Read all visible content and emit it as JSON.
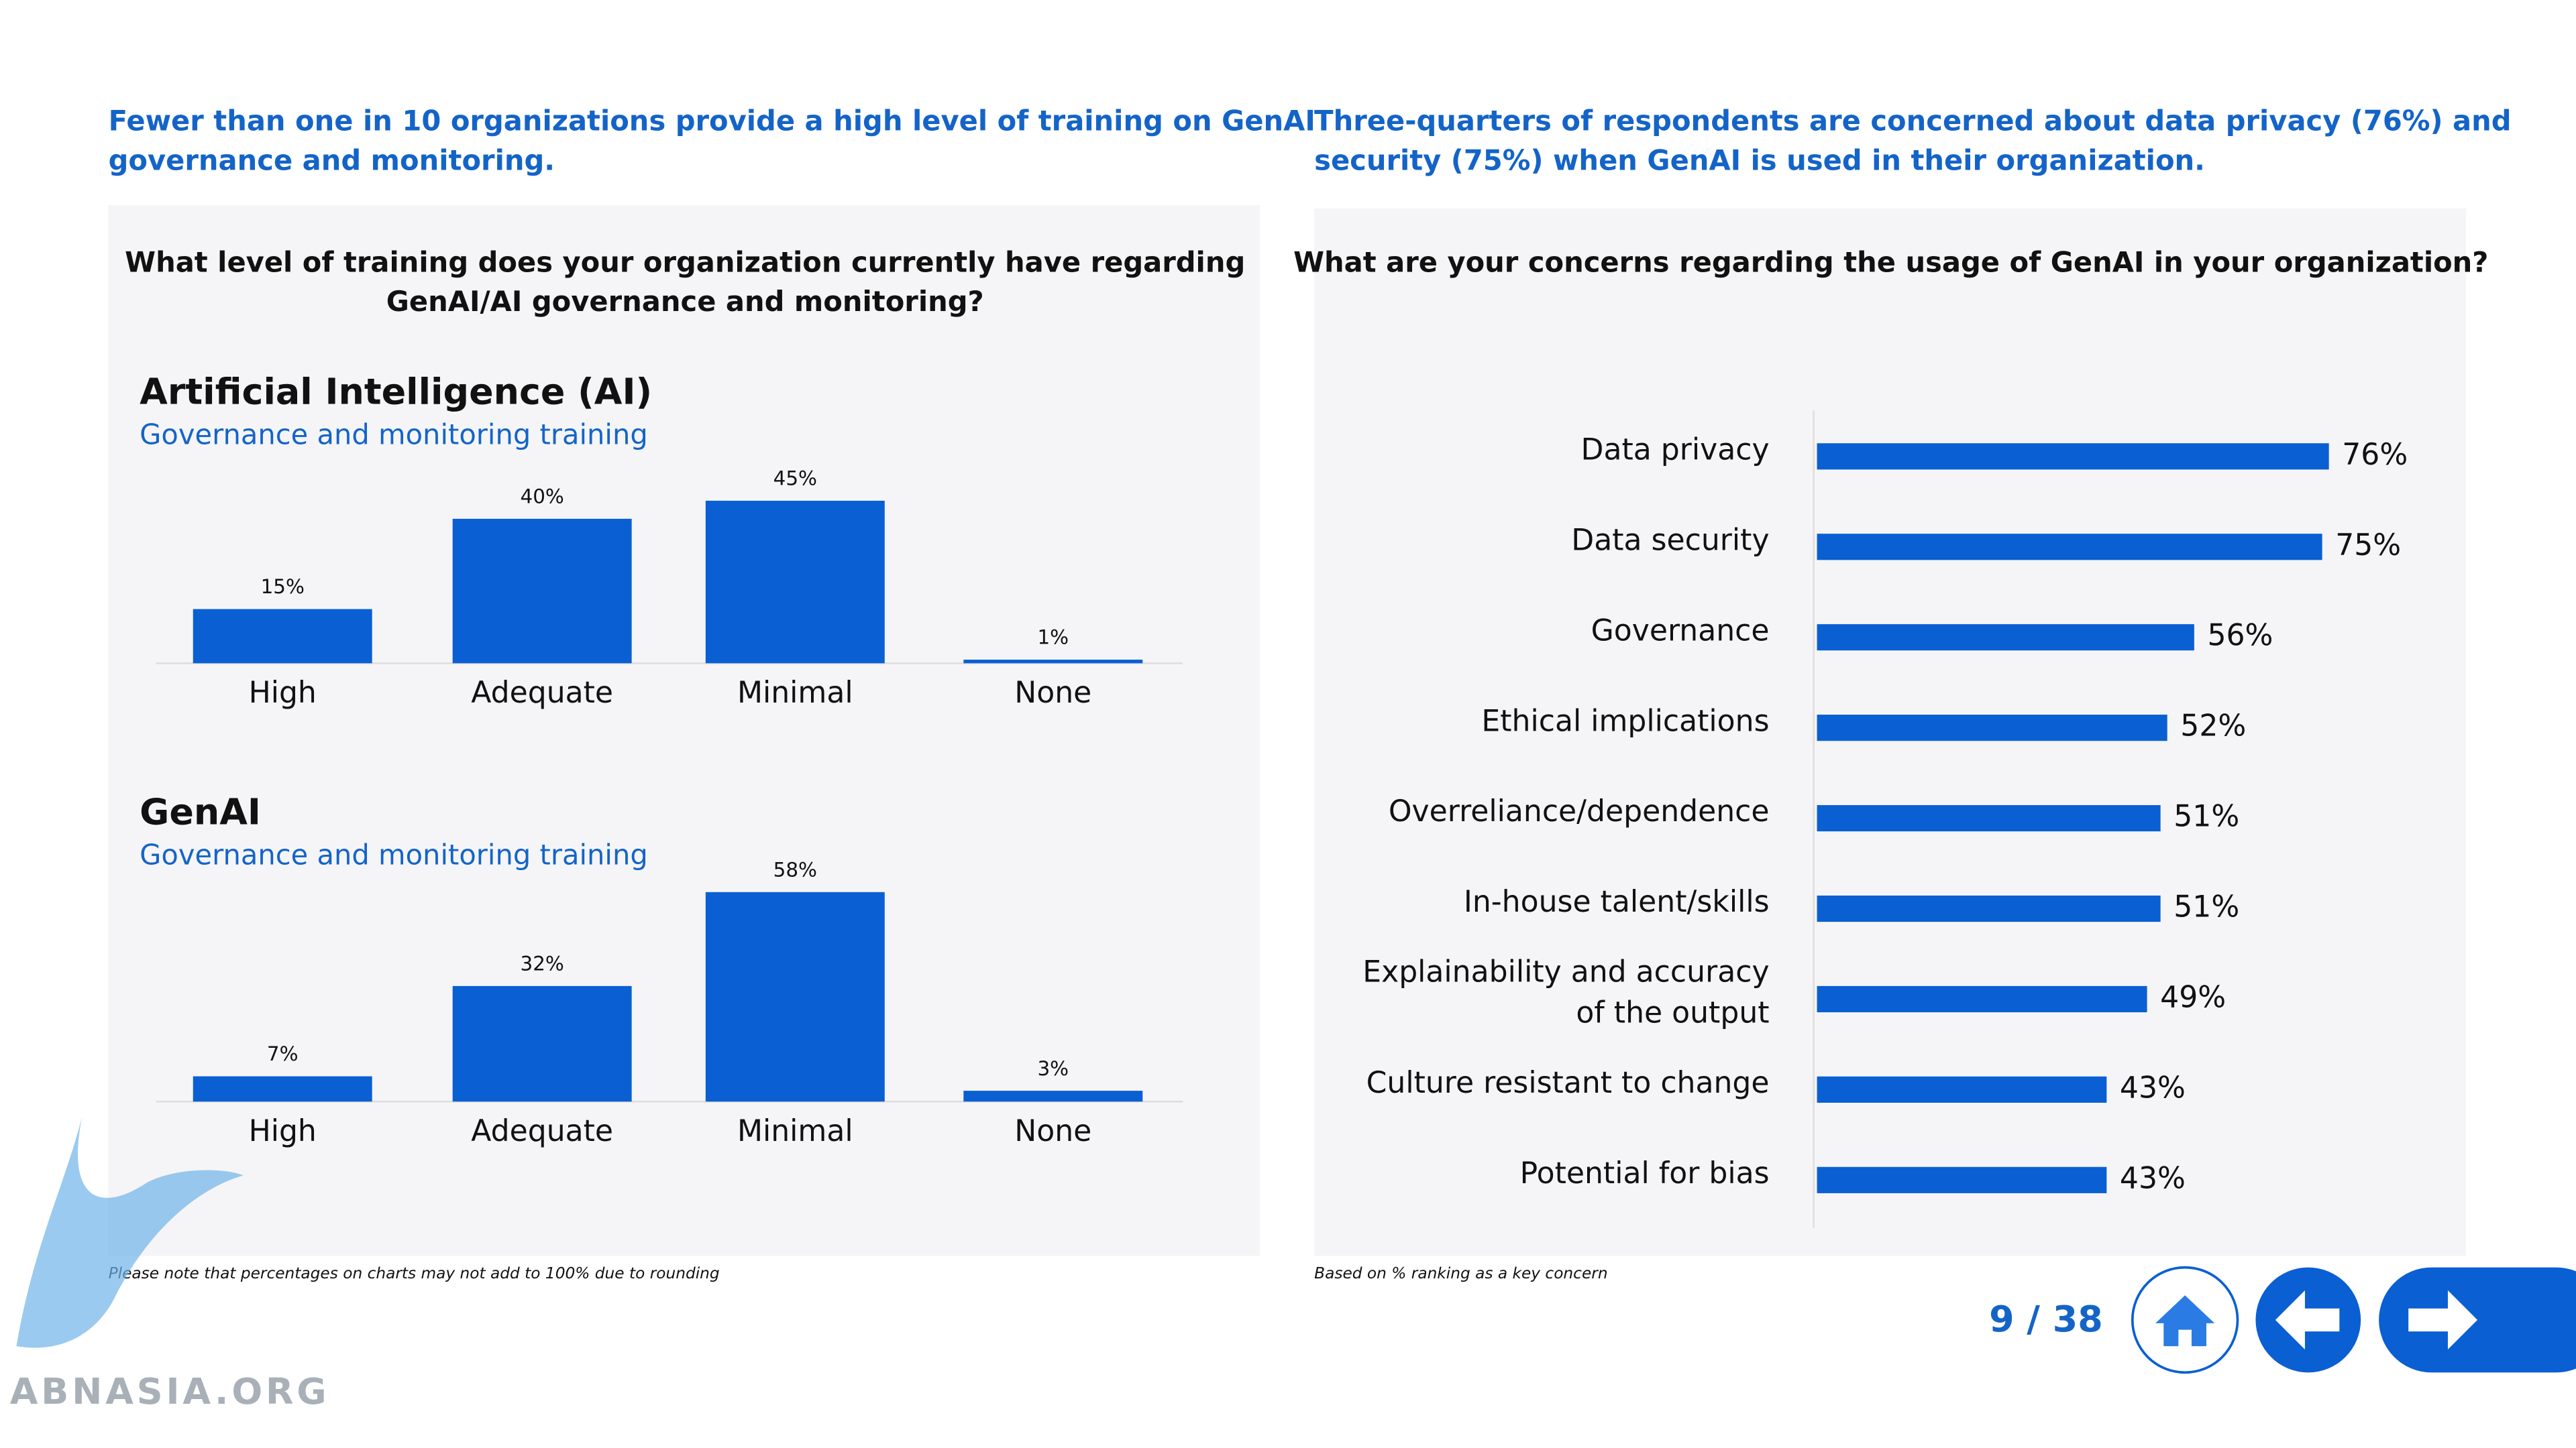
{
  "left": {
    "headline": "Fewer than one in 10 organizations provide a high level of training on GenAI governance and monitoring.",
    "question": "What level of training does your organization currently have regarding GenAI/AI governance and monitoring?",
    "note": "Please note that percentages on charts may not add to 100% due to rounding"
  },
  "right": {
    "headline": "Three-quarters of respondents are concerned about data privacy (76%) and security (75%) when GenAI is used in their organization.",
    "note": "Based on % ranking as a key concern"
  },
  "pagination": {
    "page": "9 / 38"
  },
  "watermark": "ABNASIA.ORG",
  "chart_data": [
    {
      "type": "bar",
      "title": "Artificial Intelligence (AI)",
      "subtitle": "Governance and monitoring training",
      "categories": [
        "High",
        "Adequate",
        "Minimal",
        "None"
      ],
      "values": [
        15,
        40,
        45,
        1
      ],
      "value_labels": [
        "15%",
        "40%",
        "45%",
        "1%"
      ],
      "color": "#0a5fd3"
    },
    {
      "type": "bar",
      "title": "GenAI",
      "subtitle": "Governance and monitoring training",
      "categories": [
        "High",
        "Adequate",
        "Minimal",
        "None"
      ],
      "values": [
        7,
        32,
        58,
        3
      ],
      "value_labels": [
        "7%",
        "32%",
        "58%",
        "3%"
      ],
      "color": "#0a5fd3"
    },
    {
      "type": "hbar",
      "title": "What are your concerns regarding the usage of GenAI in your organization?",
      "categories": [
        "Data privacy",
        "Data security",
        "Governance",
        "Ethical implications",
        "Overreliance/dependence",
        "In-house talent/skills",
        "Explainability and accuracy of the output",
        "Culture resistant to change",
        "Potential for bias"
      ],
      "values": [
        76,
        75,
        56,
        52,
        51,
        51,
        49,
        43,
        43
      ],
      "value_labels": [
        "76%",
        "75%",
        "56%",
        "52%",
        "51%",
        "51%",
        "49%",
        "43%",
        "43%"
      ],
      "color": "#0a5fd3"
    }
  ]
}
